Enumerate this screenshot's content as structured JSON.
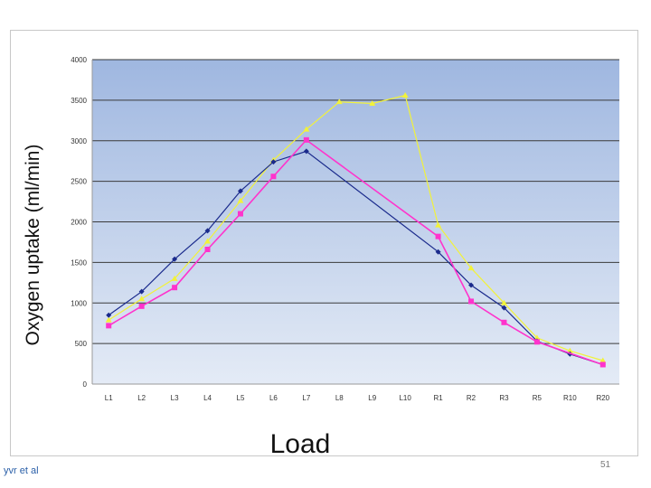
{
  "chart_data": {
    "type": "line",
    "title": "",
    "xlabel": "Load",
    "ylabel": "Oxygen uptake (ml/min)",
    "categories": [
      "L1",
      "L2",
      "L3",
      "L4",
      "L5",
      "L6",
      "L7",
      "L8",
      "L9",
      "L10",
      "R1",
      "R2",
      "R3",
      "R5",
      "R10",
      "R20"
    ],
    "ylim": [
      0,
      4000
    ],
    "yticks": [
      0,
      500,
      1000,
      1500,
      2000,
      2500,
      3000,
      3500,
      4000
    ],
    "grid": true,
    "legend": "none",
    "series": [
      {
        "color": "#1a2a8c",
        "marker": "diamond",
        "values": [
          850,
          1140,
          1540,
          1890,
          2380,
          2740,
          2870,
          null,
          null,
          null,
          1630,
          1220,
          940,
          530,
          370,
          240
        ]
      },
      {
        "color": "#ff33cc",
        "marker": "square",
        "values": [
          720,
          960,
          1190,
          1660,
          2100,
          2560,
          3010,
          null,
          null,
          null,
          1820,
          1020,
          760,
          520,
          null,
          240
        ]
      },
      {
        "color": "#f2f23a",
        "marker": "triangle",
        "values": [
          790,
          1050,
          1300,
          1760,
          2260,
          2760,
          3140,
          3480,
          3460,
          3560,
          1960,
          1430,
          1000,
          570,
          410,
          290
        ]
      }
    ]
  },
  "footer": {
    "author": "yvr et al",
    "page_number": "51"
  }
}
